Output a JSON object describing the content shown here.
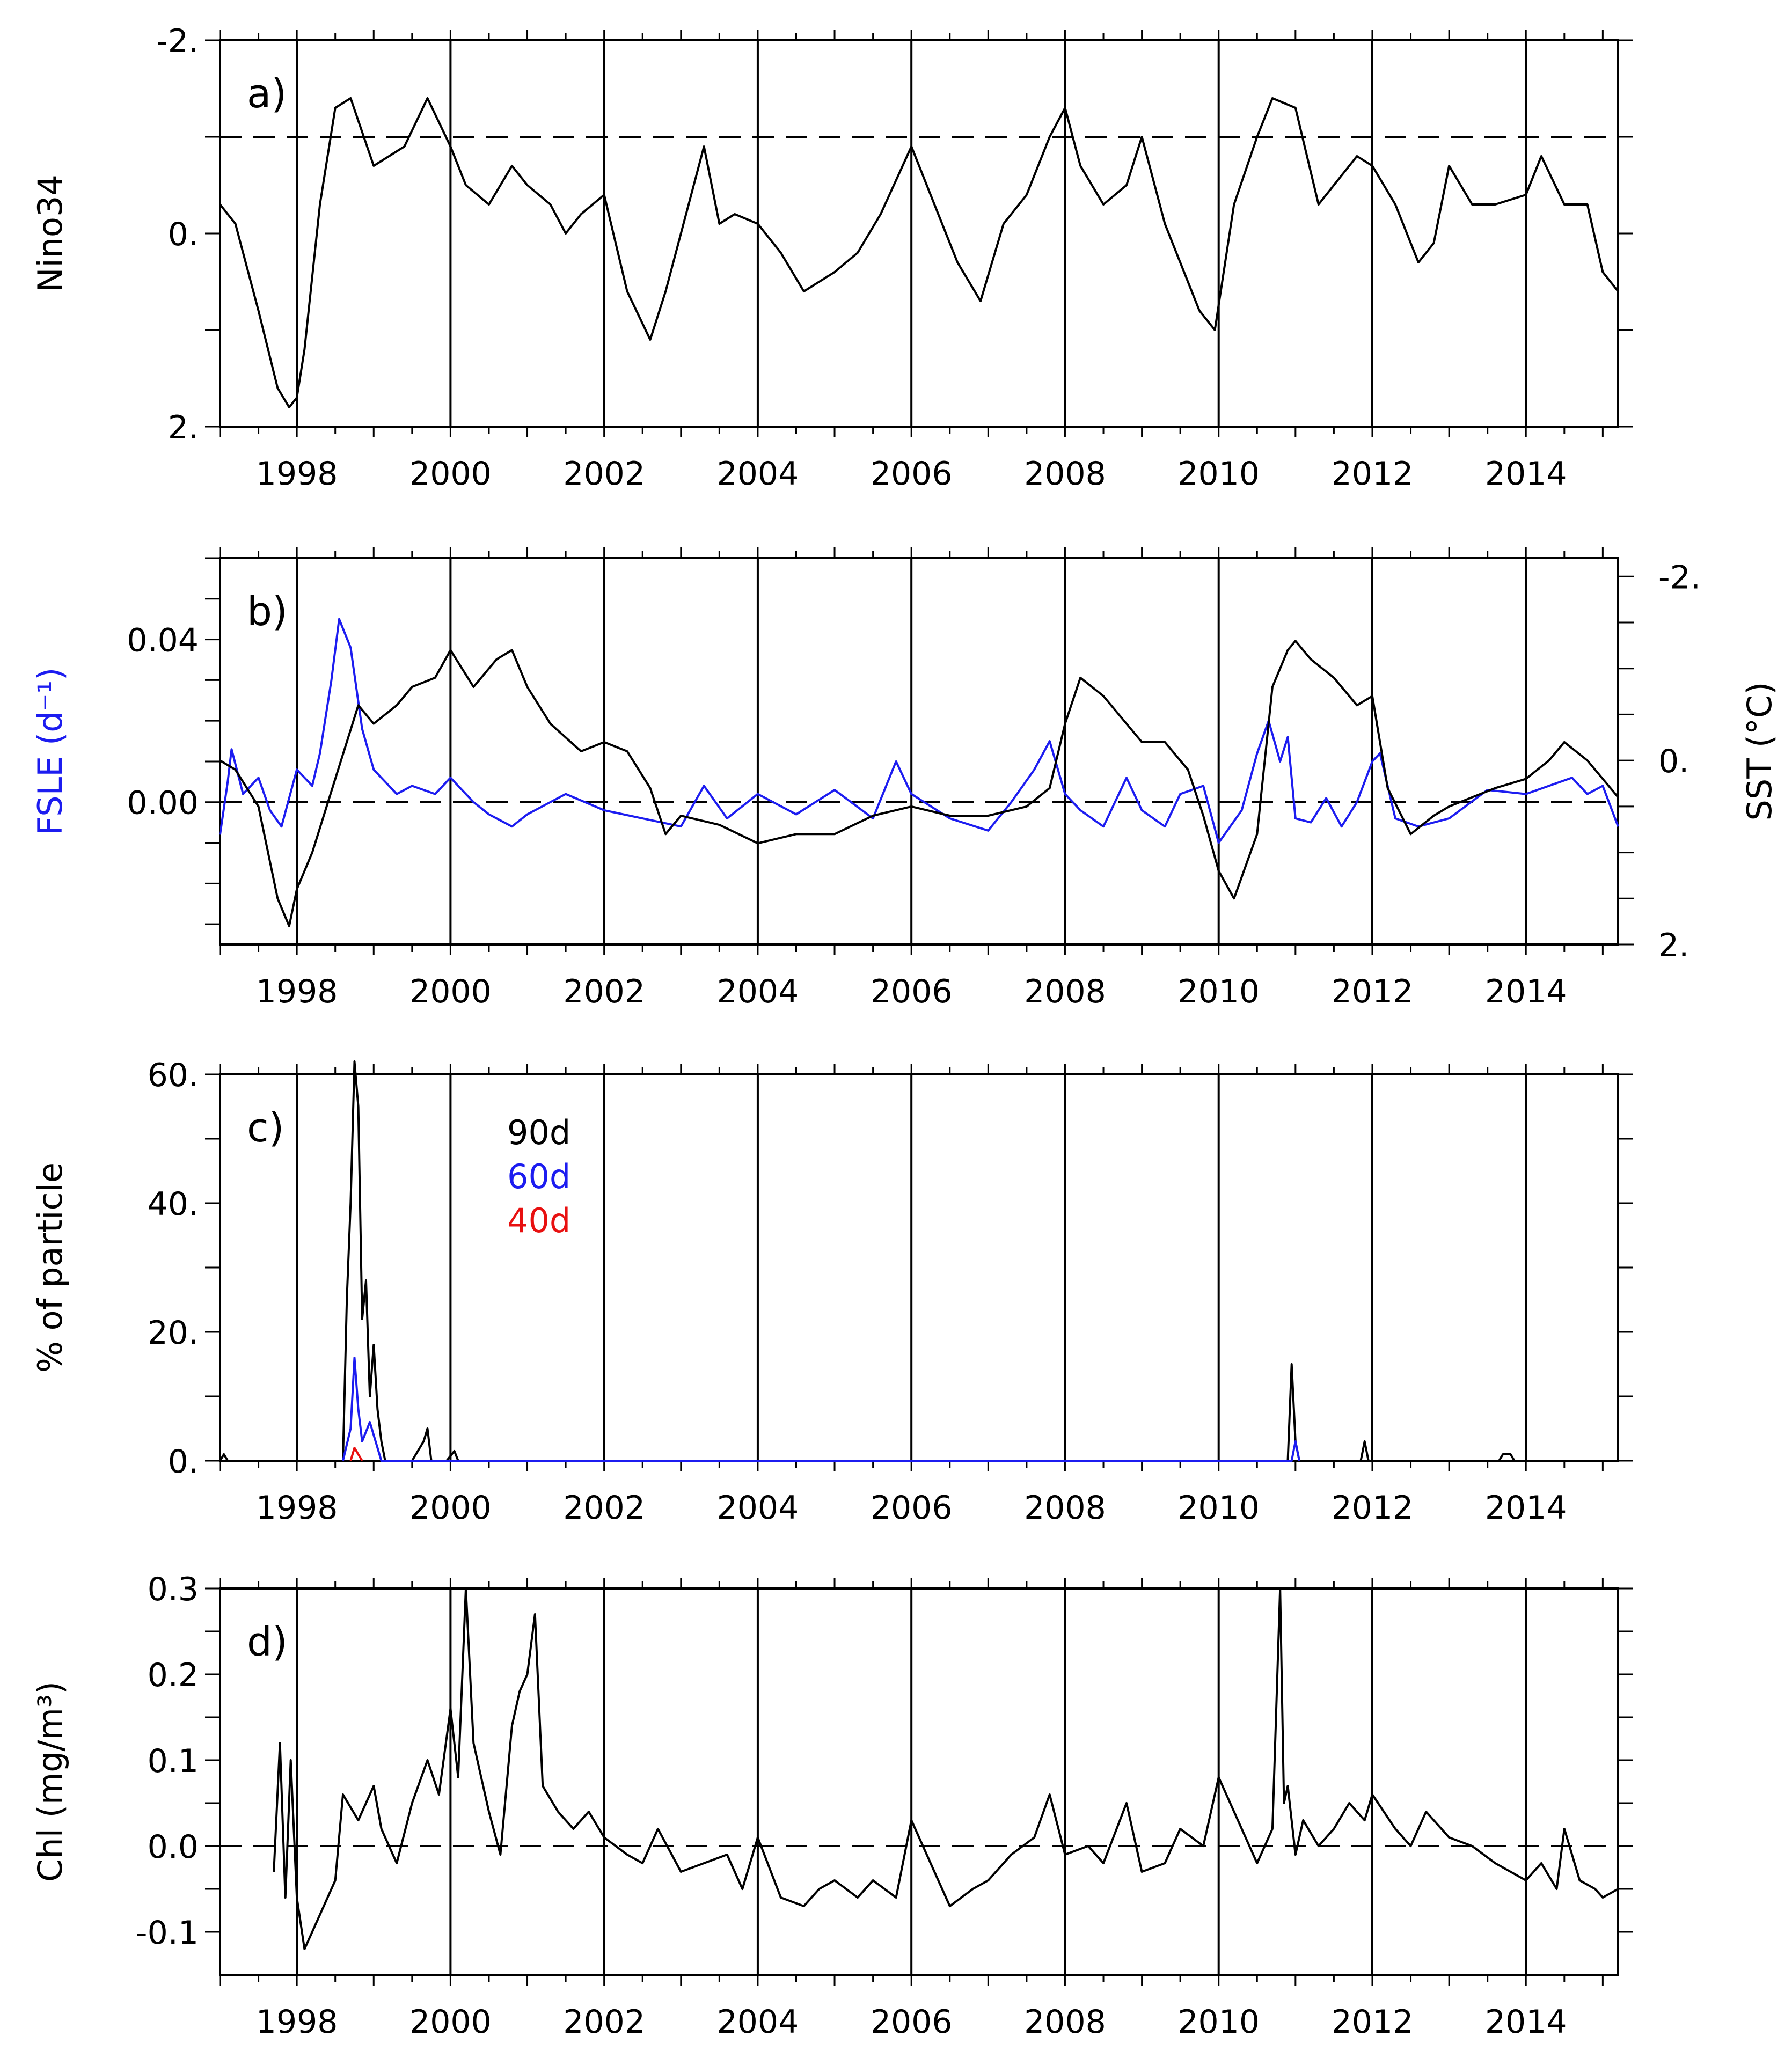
{
  "figure": {
    "colors": {
      "black": "#000000",
      "blue": "#1c1cf0",
      "red": "#e81010"
    }
  },
  "chart_data": [
    {
      "panel": "a)",
      "type": "line",
      "title": "",
      "xlabel": "",
      "ylabel": "Nino34",
      "xlim": [
        1997.0,
        2015.2
      ],
      "xticks": [
        1998,
        2000,
        2002,
        2004,
        2006,
        2008,
        2010,
        2012,
        2014
      ],
      "xtick_labels": [
        "1998",
        "2000",
        "2002",
        "2004",
        "2006",
        "2008",
        "2010",
        "2012",
        "2014"
      ],
      "ylim": [
        -2,
        2
      ],
      "y_inverted": true,
      "yticks": [
        -2,
        0,
        2
      ],
      "ytick_labels": [
        "-2.",
        "0.",
        "2."
      ],
      "ref_lines": [
        -1.0
      ],
      "grid": "vertical lines at labeled years",
      "series": [
        {
          "name": "Nino34",
          "color": "#000000",
          "x": [
            1997.0,
            1997.2,
            1997.5,
            1997.75,
            1997.9,
            1998.0,
            1998.1,
            1998.3,
            1998.5,
            1998.7,
            1999.0,
            1999.2,
            1999.4,
            1999.7,
            2000.0,
            2000.2,
            2000.5,
            2000.8,
            2001.0,
            2001.3,
            2001.5,
            2001.7,
            2002.0,
            2002.3,
            2002.6,
            2002.8,
            2003.0,
            2003.3,
            2003.5,
            2003.7,
            2004.0,
            2004.3,
            2004.6,
            2005.0,
            2005.3,
            2005.6,
            2006.0,
            2006.3,
            2006.6,
            2006.9,
            2007.2,
            2007.5,
            2007.8,
            2008.0,
            2008.2,
            2008.5,
            2008.8,
            2009.0,
            2009.3,
            2009.5,
            2009.75,
            2009.95,
            2010.2,
            2010.5,
            2010.7,
            2011.0,
            2011.3,
            2011.6,
            2011.8,
            2012.0,
            2012.3,
            2012.6,
            2012.8,
            2013.0,
            2013.3,
            2013.6,
            2014.0,
            2014.2,
            2014.5,
            2014.8,
            2015.0,
            2015.2
          ],
          "y": [
            -0.3,
            -0.1,
            0.8,
            1.6,
            1.8,
            1.7,
            1.2,
            -0.3,
            -1.3,
            -1.4,
            -0.7,
            -0.8,
            -0.9,
            -1.4,
            -0.9,
            -0.5,
            -0.3,
            -0.7,
            -0.5,
            -0.3,
            0.0,
            -0.2,
            -0.4,
            0.6,
            1.1,
            0.6,
            0.0,
            -0.9,
            -0.1,
            -0.2,
            -0.1,
            0.2,
            0.6,
            0.4,
            0.2,
            -0.2,
            -0.9,
            -0.3,
            0.3,
            0.7,
            -0.1,
            -0.4,
            -1.0,
            -1.3,
            -0.7,
            -0.3,
            -0.5,
            -1.0,
            -0.1,
            0.3,
            0.8,
            1.0,
            -0.3,
            -1.0,
            -1.4,
            -1.3,
            -0.3,
            -0.6,
            -0.8,
            -0.7,
            -0.3,
            0.3,
            0.1,
            -0.7,
            -0.3,
            -0.3,
            -0.4,
            -0.8,
            -0.3,
            -0.3,
            0.4,
            0.6
          ]
        }
      ]
    },
    {
      "panel": "b)",
      "type": "line",
      "title": "",
      "xlabel": "",
      "ylabel": "FSLE (d⁻¹)",
      "ylabel_right": "SST (°C)",
      "xlim": [
        1997.0,
        2015.2
      ],
      "xticks": [
        1998,
        2000,
        2002,
        2004,
        2006,
        2008,
        2010,
        2012,
        2014
      ],
      "xtick_labels": [
        "1998",
        "2000",
        "2002",
        "2004",
        "2006",
        "2008",
        "2010",
        "2012",
        "2014"
      ],
      "ylim": [
        -0.035,
        0.06
      ],
      "yticks": [
        0.0,
        0.04
      ],
      "ytick_labels": [
        "0.00",
        "0.04"
      ],
      "y2lim": [
        2,
        -2.2
      ],
      "y2ticks": [
        -2,
        0,
        2
      ],
      "y2tick_labels": [
        "-2.",
        "0.",
        "2."
      ],
      "ref_lines": [
        0.0
      ],
      "grid": "vertical lines at labeled years",
      "series": [
        {
          "name": "FSLE",
          "axis": "left",
          "color": "#1c1cf0",
          "x": [
            1997.0,
            1997.1,
            1997.15,
            1997.3,
            1997.5,
            1997.65,
            1997.8,
            1998.0,
            1998.2,
            1998.3,
            1998.45,
            1998.55,
            1998.7,
            1998.85,
            1999.0,
            1999.3,
            1999.5,
            1999.8,
            2000.0,
            2000.3,
            2000.5,
            2000.8,
            2001.0,
            2001.5,
            2002.0,
            2002.5,
            2003.0,
            2003.3,
            2003.6,
            2004.0,
            2004.5,
            2005.0,
            2005.5,
            2005.8,
            2006.0,
            2006.5,
            2007.0,
            2007.3,
            2007.6,
            2007.8,
            2008.0,
            2008.2,
            2008.5,
            2008.8,
            2009.0,
            2009.3,
            2009.5,
            2009.8,
            2010.0,
            2010.3,
            2010.5,
            2010.65,
            2010.8,
            2010.9,
            2011.0,
            2011.2,
            2011.4,
            2011.6,
            2011.8,
            2012.0,
            2012.1,
            2012.3,
            2012.6,
            2013.0,
            2013.5,
            2014.0,
            2014.3,
            2014.6,
            2014.8,
            2015.0,
            2015.2
          ],
          "y": [
            -0.008,
            0.005,
            0.013,
            0.002,
            0.006,
            -0.002,
            -0.006,
            0.008,
            0.004,
            0.012,
            0.03,
            0.045,
            0.038,
            0.018,
            0.008,
            0.002,
            0.004,
            0.002,
            0.006,
            0.0,
            -0.003,
            -0.006,
            -0.003,
            0.002,
            -0.002,
            -0.004,
            -0.006,
            0.004,
            -0.004,
            0.002,
            -0.003,
            0.003,
            -0.004,
            0.01,
            0.002,
            -0.004,
            -0.007,
            0.0,
            0.008,
            0.015,
            0.002,
            -0.002,
            -0.006,
            0.006,
            -0.002,
            -0.006,
            0.002,
            0.004,
            -0.01,
            -0.002,
            0.012,
            0.02,
            0.01,
            0.016,
            -0.004,
            -0.005,
            0.001,
            -0.006,
            0.0,
            0.01,
            0.012,
            -0.004,
            -0.006,
            -0.004,
            0.003,
            0.002,
            0.004,
            0.006,
            0.002,
            0.004,
            -0.006
          ]
        },
        {
          "name": "SST",
          "axis": "right",
          "color": "#000000",
          "x": [
            1997.0,
            1997.2,
            1997.5,
            1997.75,
            1997.9,
            1998.0,
            1998.2,
            1998.5,
            1998.8,
            1999.0,
            1999.3,
            1999.5,
            1999.8,
            2000.0,
            2000.3,
            2000.6,
            2000.8,
            2001.0,
            2001.3,
            2001.7,
            2002.0,
            2002.3,
            2002.6,
            2002.8,
            2003.0,
            2003.5,
            2004.0,
            2004.5,
            2005.0,
            2005.5,
            2006.0,
            2006.5,
            2007.0,
            2007.5,
            2007.8,
            2008.0,
            2008.2,
            2008.5,
            2008.8,
            2009.0,
            2009.3,
            2009.6,
            2009.8,
            2010.0,
            2010.2,
            2010.5,
            2010.7,
            2010.9,
            2011.0,
            2011.2,
            2011.5,
            2011.8,
            2012.0,
            2012.2,
            2012.5,
            2012.8,
            2013.0,
            2013.3,
            2013.6,
            2014.0,
            2014.3,
            2014.5,
            2014.8,
            2015.0,
            2015.2
          ],
          "y": [
            0.0,
            0.1,
            0.5,
            1.5,
            1.8,
            1.4,
            1.0,
            0.2,
            -0.6,
            -0.4,
            -0.6,
            -0.8,
            -0.9,
            -1.2,
            -0.8,
            -1.1,
            -1.2,
            -0.8,
            -0.4,
            -0.1,
            -0.2,
            -0.1,
            0.3,
            0.8,
            0.6,
            0.7,
            0.9,
            0.8,
            0.8,
            0.6,
            0.5,
            0.6,
            0.6,
            0.5,
            0.3,
            -0.4,
            -0.9,
            -0.7,
            -0.4,
            -0.2,
            -0.2,
            0.1,
            0.6,
            1.2,
            1.5,
            0.8,
            -0.8,
            -1.2,
            -1.3,
            -1.1,
            -0.9,
            -0.6,
            -0.7,
            0.3,
            0.8,
            0.6,
            0.5,
            0.4,
            0.3,
            0.2,
            0.0,
            -0.2,
            0.0,
            0.2,
            0.4
          ]
        }
      ]
    },
    {
      "panel": "c)",
      "type": "line",
      "title": "",
      "xlabel": "",
      "ylabel": "% of particle",
      "xlim": [
        1997.0,
        2015.2
      ],
      "xticks": [
        1998,
        2000,
        2002,
        2004,
        2006,
        2008,
        2010,
        2012,
        2014
      ],
      "xtick_labels": [
        "1998",
        "2000",
        "2002",
        "2004",
        "2006",
        "2008",
        "2010",
        "2012",
        "2014"
      ],
      "ylim": [
        0,
        60
      ],
      "yticks": [
        0,
        20,
        40,
        60
      ],
      "ytick_labels": [
        "0.",
        "20.",
        "40.",
        "60."
      ],
      "legend": {
        "placement": "upper-left",
        "entries": [
          "90d",
          "60d",
          "40d"
        ]
      },
      "grid": "vertical lines at labeled years",
      "series": [
        {
          "name": "90d",
          "color": "#000000",
          "x": [
            1997.0,
            1997.05,
            1997.1,
            1998.6,
            1998.65,
            1998.7,
            1998.75,
            1998.8,
            1998.85,
            1998.9,
            1998.95,
            1999.0,
            1999.05,
            1999.1,
            1999.15,
            1999.5,
            1999.65,
            1999.7,
            1999.75,
            1999.95,
            2000.05,
            2000.1,
            2010.9,
            2010.95,
            2011.0,
            2011.05,
            2011.85,
            2011.9,
            2011.95,
            2013.65,
            2013.7,
            2013.8,
            2013.85
          ],
          "y": [
            0,
            1,
            0,
            0,
            25,
            40,
            62,
            55,
            22,
            28,
            10,
            18,
            8,
            3,
            0,
            0,
            3,
            5,
            0,
            0,
            1.5,
            0,
            0,
            15,
            3,
            0,
            0,
            3,
            0,
            0,
            1,
            1,
            0
          ]
        },
        {
          "name": "60d",
          "color": "#1c1cf0",
          "x": [
            1998.6,
            1998.7,
            1998.75,
            1998.8,
            1998.85,
            1998.95,
            1999.05,
            1999.1,
            2010.95,
            2011.0,
            2011.05
          ],
          "y": [
            0,
            5,
            16,
            8,
            3,
            6,
            2,
            0,
            0,
            3,
            0
          ]
        },
        {
          "name": "40d",
          "color": "#e81010",
          "x": [
            1998.7,
            1998.75,
            1998.8,
            1998.85
          ],
          "y": [
            0,
            2,
            1,
            0
          ]
        }
      ]
    },
    {
      "panel": "d)",
      "type": "line",
      "title": "",
      "xlabel": "",
      "ylabel": "Chl (mg/m³)",
      "xlim": [
        1997.0,
        2015.2
      ],
      "xticks": [
        1998,
        2000,
        2002,
        2004,
        2006,
        2008,
        2010,
        2012,
        2014
      ],
      "xtick_labels": [
        "1998",
        "2000",
        "2002",
        "2004",
        "2006",
        "2008",
        "2010",
        "2012",
        "2014"
      ],
      "ylim": [
        -0.15,
        0.3
      ],
      "yticks": [
        -0.1,
        0.0,
        0.1,
        0.2,
        0.3
      ],
      "ytick_labels": [
        "-0.1",
        "0.0",
        "0.1",
        "0.2",
        "0.3"
      ],
      "ref_lines": [
        0.0
      ],
      "grid": "vertical lines at labeled years",
      "series": [
        {
          "name": "Chl",
          "color": "#000000",
          "x": [
            1997.7,
            1997.78,
            1997.85,
            1997.92,
            1998.0,
            1998.1,
            1998.3,
            1998.5,
            1998.6,
            1998.8,
            1999.0,
            1999.1,
            1999.3,
            1999.5,
            1999.7,
            1999.85,
            2000.0,
            2000.1,
            2000.2,
            2000.3,
            2000.4,
            2000.5,
            2000.65,
            2000.8,
            2000.9,
            2001.0,
            2001.1,
            2001.2,
            2001.4,
            2001.6,
            2001.8,
            2002.0,
            2002.3,
            2002.5,
            2002.7,
            2003.0,
            2003.3,
            2003.6,
            2003.8,
            2004.0,
            2004.3,
            2004.6,
            2004.8,
            2005.0,
            2005.3,
            2005.5,
            2005.8,
            2006.0,
            2006.3,
            2006.5,
            2006.8,
            2007.0,
            2007.3,
            2007.6,
            2007.8,
            2008.0,
            2008.3,
            2008.5,
            2008.8,
            2009.0,
            2009.3,
            2009.5,
            2009.8,
            2010.0,
            2010.3,
            2010.5,
            2010.7,
            2010.8,
            2010.85,
            2010.9,
            2011.0,
            2011.1,
            2011.3,
            2011.5,
            2011.7,
            2011.9,
            2012.0,
            2012.3,
            2012.5,
            2012.7,
            2013.0,
            2013.3,
            2013.6,
            2013.8,
            2014.0,
            2014.2,
            2014.4,
            2014.5,
            2014.7,
            2014.9,
            2015.0,
            2015.2
          ],
          "y": [
            -0.03,
            0.12,
            -0.06,
            0.1,
            -0.06,
            -0.12,
            -0.08,
            -0.04,
            0.06,
            0.03,
            0.07,
            0.02,
            -0.02,
            0.05,
            0.1,
            0.06,
            0.16,
            0.08,
            0.3,
            0.12,
            0.08,
            0.04,
            -0.01,
            0.14,
            0.18,
            0.2,
            0.27,
            0.07,
            0.04,
            0.02,
            0.04,
            0.01,
            -0.01,
            -0.02,
            0.02,
            -0.03,
            -0.02,
            -0.01,
            -0.05,
            0.01,
            -0.06,
            -0.07,
            -0.05,
            -0.04,
            -0.06,
            -0.04,
            -0.06,
            0.03,
            -0.03,
            -0.07,
            -0.05,
            -0.04,
            -0.01,
            0.01,
            0.06,
            -0.01,
            0.0,
            -0.02,
            0.05,
            -0.03,
            -0.02,
            0.02,
            0.0,
            0.08,
            0.02,
            -0.02,
            0.02,
            0.3,
            0.05,
            0.07,
            -0.01,
            0.03,
            0.0,
            0.02,
            0.05,
            0.03,
            0.06,
            0.02,
            0.0,
            0.04,
            0.01,
            0.0,
            -0.02,
            -0.03,
            -0.04,
            -0.02,
            -0.05,
            0.02,
            -0.04,
            -0.05,
            -0.06,
            -0.05
          ]
        }
      ]
    }
  ]
}
